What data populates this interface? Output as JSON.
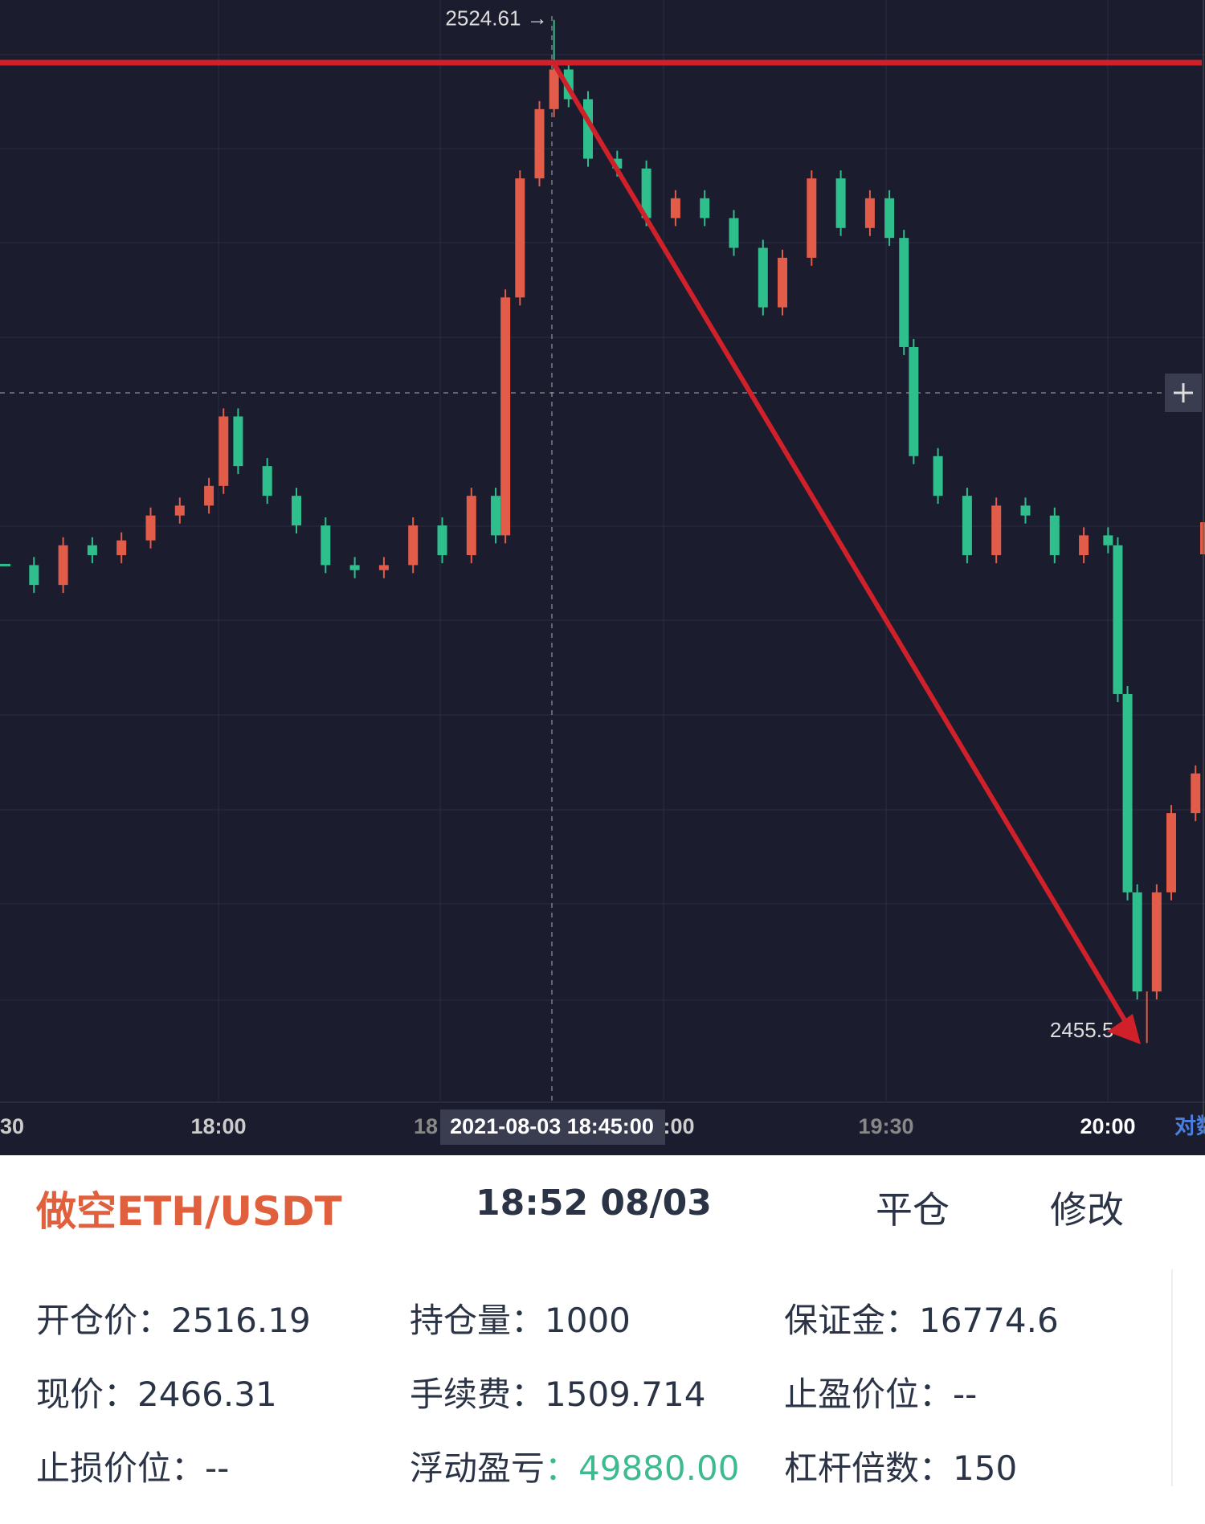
{
  "chart_data": {
    "type": "candlestick",
    "closes": [
      2487.78,
      2486.44,
      2489.12,
      2488.45,
      2489.45,
      2491.13,
      2491.8,
      2493.13,
      2497.82,
      2494.47,
      2492.46,
      2490.46,
      2487.78,
      2487.44,
      2487.78,
      2490.46,
      2488.45,
      2492.46,
      2489.79,
      2505.86,
      2513.9,
      2518.58,
      2521.26,
      2519.25,
      2515.23,
      2514.57,
      2511.22,
      2512.56,
      2511.22,
      2509.21,
      2505.19,
      2508.54,
      2513.9,
      2510.55,
      2512.56,
      2509.88,
      2502.51,
      2495.14,
      2492.46,
      2488.45,
      2491.8,
      2491.13,
      2488.45,
      2489.79,
      2489.12,
      2479.07,
      2465.68,
      2458.98,
      2465.68,
      2471.03,
      2473.71
    ],
    "up_color": "#e25c4a",
    "down_color": "#2fbf8c",
    "ylim": [
      2451.61,
      2525.95
    ],
    "max_label": {
      "value": 2524.61,
      "label": "2524.61 →"
    },
    "min_label": {
      "value": 2455.5,
      "label": "2455.5 →"
    },
    "x_axis_labels": [
      "30",
      "18:00",
      "18",
      "2021-08-03 18:45:00",
      ":00",
      "19:30",
      "20:00",
      "对数"
    ]
  },
  "order": {
    "title": "做空ETH/USDT",
    "time": "18:52 08/03",
    "actions": [
      "平仓",
      "修改"
    ],
    "fields": [
      [
        {
          "label": "开仓价：",
          "value": "2516.19"
        },
        {
          "label": "持仓量：",
          "value": "1000"
        },
        {
          "label": "保证金：",
          "value": "16774.6"
        }
      ],
      [
        {
          "label": "现价：",
          "value": "2466.31"
        },
        {
          "label": "手续费：",
          "value": "1509.714"
        },
        {
          "label": "止盈价位：",
          "value": "--"
        }
      ],
      [
        {
          "label": "止损价位：",
          "value": "--"
        },
        {
          "label": "浮动盈亏",
          "value": "：49880.00"
        },
        {
          "label": "杠杆倍数：",
          "value": "150"
        }
      ]
    ]
  }
}
